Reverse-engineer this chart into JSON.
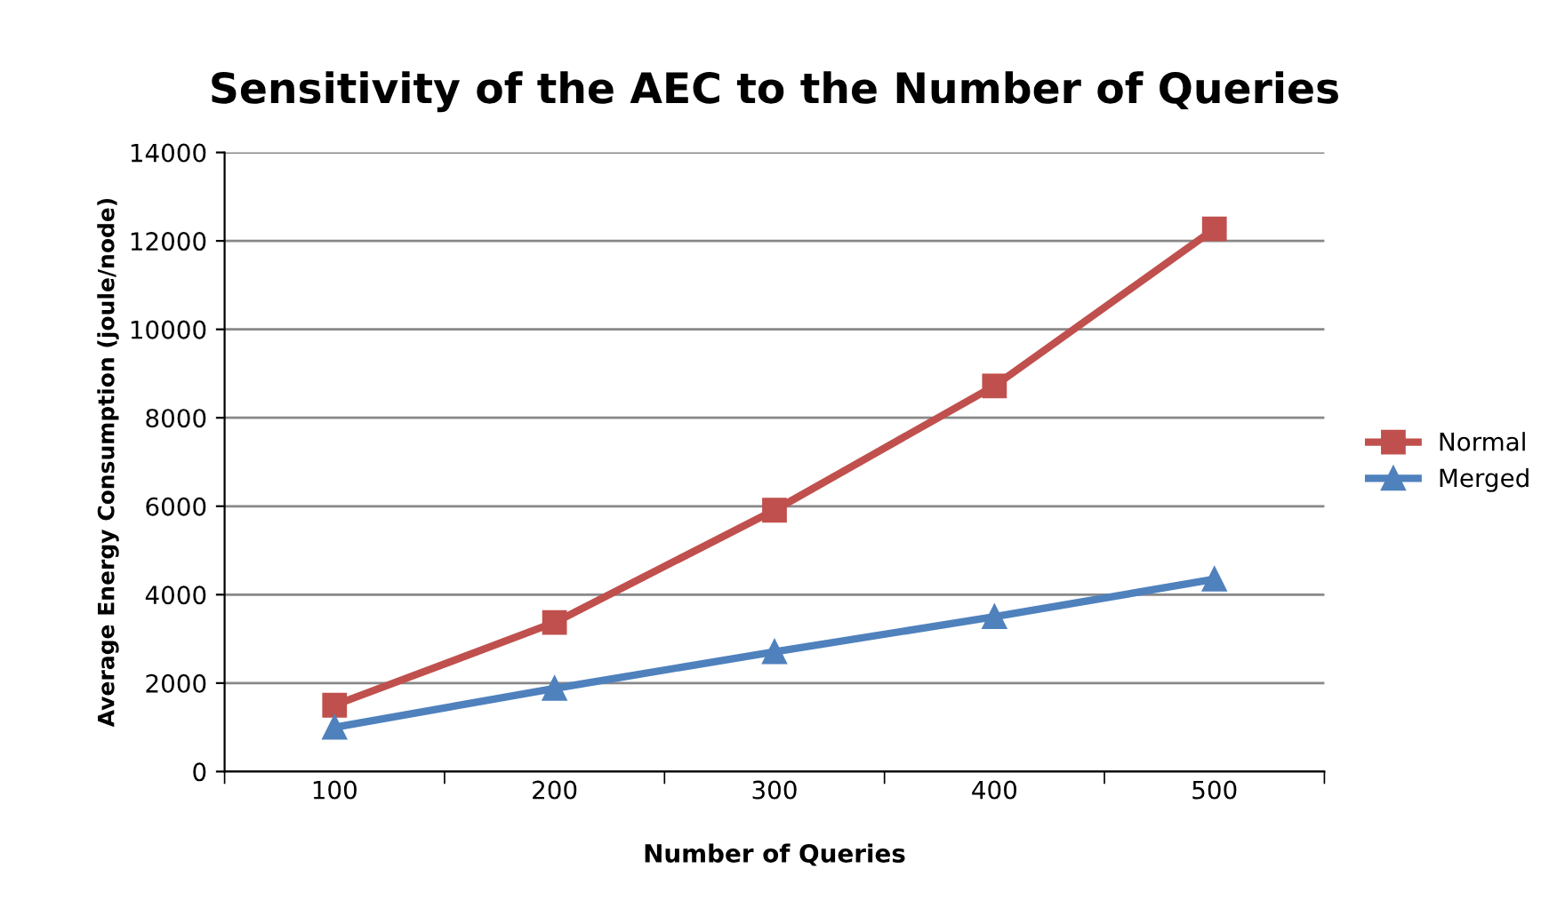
{
  "chart_data": {
    "type": "line",
    "title": "Sensitivity of the AEC to the Number of Queries",
    "xlabel": "Number of Queries",
    "ylabel": "Average Energy Consumption (joule/node)",
    "categories": [
      "100",
      "200",
      "300",
      "400",
      "500"
    ],
    "series": [
      {
        "name": "Normal",
        "color": "#c0504d",
        "marker": "square",
        "values": [
          1500,
          3370,
          5910,
          8720,
          12270
        ]
      },
      {
        "name": "Merged",
        "color": "#4f81bd",
        "marker": "triangle",
        "values": [
          1000,
          1880,
          2710,
          3500,
          4350
        ]
      }
    ],
    "ylim": [
      0,
      14000
    ],
    "yticks": [
      0,
      2000,
      4000,
      6000,
      8000,
      10000,
      12000,
      14000
    ],
    "grid": "y",
    "legend": "right",
    "line_style": "solid"
  }
}
